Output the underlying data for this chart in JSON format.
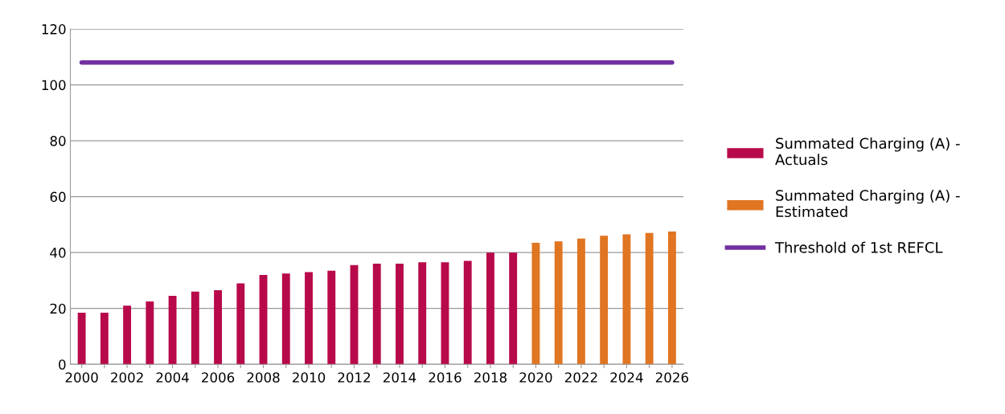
{
  "chart_data": {
    "type": "bar",
    "categories": [
      "2000",
      null,
      "2002",
      null,
      "2004",
      null,
      "2006",
      null,
      "2008",
      null,
      "2010",
      null,
      "2012",
      null,
      "2014",
      null,
      "2016",
      null,
      "2018",
      null,
      "2020",
      null,
      "2022",
      null,
      "2024",
      null,
      "2026"
    ],
    "series": [
      {
        "name": "Summated Charging (A) - Actuals",
        "color": "#b8094a",
        "values": [
          18.5,
          18.5,
          21,
          22.5,
          24.5,
          26,
          26.5,
          29,
          32,
          32.5,
          33,
          33.5,
          35.5,
          36,
          36,
          36.5,
          36.5,
          37,
          40,
          40,
          null,
          null,
          null,
          null,
          null,
          null,
          null
        ]
      },
      {
        "name": "Summated Charging (A) - Estimated",
        "color": "#e07522",
        "values": [
          null,
          null,
          null,
          null,
          null,
          null,
          null,
          null,
          null,
          null,
          null,
          null,
          null,
          null,
          null,
          null,
          null,
          null,
          null,
          null,
          43.5,
          44,
          45,
          46,
          46.5,
          47,
          47.5
        ]
      },
      {
        "name": "Threshold of 1st REFCL",
        "type": "line",
        "color": "#7030a0",
        "values": [
          108,
          108,
          108,
          108,
          108,
          108,
          108,
          108,
          108,
          108,
          108,
          108,
          108,
          108,
          108,
          108,
          108,
          108,
          108,
          108,
          108,
          108,
          108,
          108,
          108,
          108,
          108
        ]
      }
    ],
    "ylim": [
      0,
      120
    ],
    "yticks": [
      0,
      20,
      40,
      60,
      80,
      100,
      120
    ],
    "grid": "y",
    "legend": "right"
  }
}
